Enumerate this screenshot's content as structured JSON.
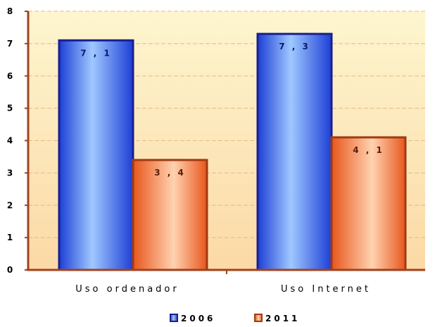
{
  "chart_data": {
    "type": "bar",
    "categories": [
      "Uso ordenador",
      "Uso Internet"
    ],
    "series": [
      {
        "name": "2006",
        "values": [
          7.1,
          7.3
        ],
        "labels": [
          "7 , 1",
          "7 , 3"
        ],
        "color": "#2f55e8"
      },
      {
        "name": "2011",
        "values": [
          3.4,
          4.1
        ],
        "labels": [
          "3 , 4",
          "4 , 1"
        ],
        "color": "#f07c3c"
      }
    ],
    "ylim": [
      0,
      8
    ],
    "yticks": [
      0,
      1,
      2,
      3,
      4,
      5,
      6,
      7,
      8
    ],
    "grid": true,
    "legend": "bottom-center",
    "colors": {
      "plot_background_top": "#fdf6cf",
      "plot_background_bottom": "#fcd9a6",
      "axis": "#a0421f",
      "bar_outline_2006": "#1a1f8f",
      "bar_outline_2011": "#a03a12",
      "label_2006": "#0d1a6b",
      "label_2011": "#5a1c06"
    }
  }
}
